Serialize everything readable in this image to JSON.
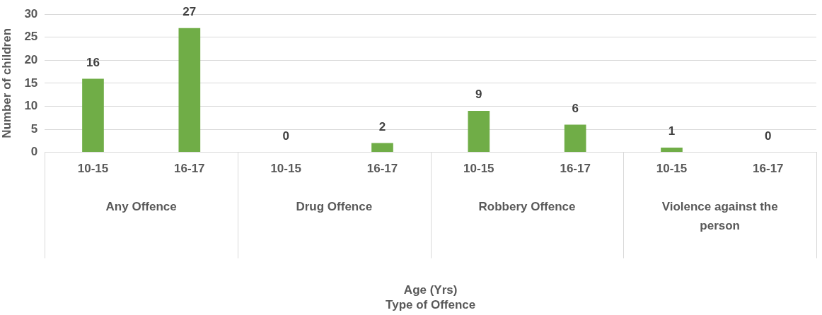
{
  "chart_data": {
    "type": "bar",
    "ylabel": "Number of children",
    "categories": [
      "10-15",
      "16-17",
      "10-15",
      "16-17",
      "10-15",
      "16-17",
      "10-15",
      "16-17"
    ],
    "values": [
      16,
      27,
      0,
      2,
      9,
      6,
      1,
      0
    ],
    "color": "#70ad47",
    "ylim": [
      0,
      30
    ],
    "yticks": [
      0,
      5,
      10,
      15,
      20,
      25,
      30
    ],
    "grid": "y",
    "data_labels": true,
    "annotations": [
      "Any Offence",
      "Drug Offence",
      "Robbery Offence",
      "Violence against the person",
      "Age (Yrs)\nType of Offence"
    ]
  }
}
